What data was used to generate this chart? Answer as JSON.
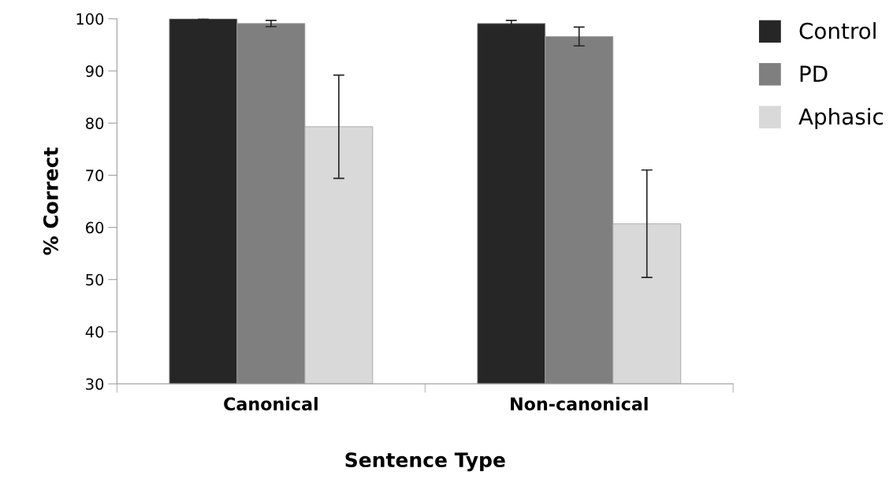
{
  "chart_data": {
    "type": "bar",
    "xlabel": "Sentence Type",
    "ylabel": "% Correct",
    "categories": [
      "Canonical",
      "Non-canonical"
    ],
    "series": [
      {
        "name": "Control",
        "color": "#262626",
        "values": [
          100,
          99.1
        ],
        "errors": [
          0.1,
          0.6
        ]
      },
      {
        "name": "PD",
        "color": "#7f7f7f",
        "values": [
          99.1,
          96.6
        ],
        "errors": [
          0.6,
          1.8
        ]
      },
      {
        "name": "Aphasic",
        "color": "#d9d9d9",
        "values": [
          79.3,
          60.7
        ],
        "errors": [
          9.9,
          10.3
        ]
      }
    ],
    "ylim": [
      30,
      100
    ],
    "yticks": [
      30,
      40,
      50,
      60,
      70,
      80,
      90,
      100
    ],
    "grid": false,
    "legend": "top right"
  }
}
